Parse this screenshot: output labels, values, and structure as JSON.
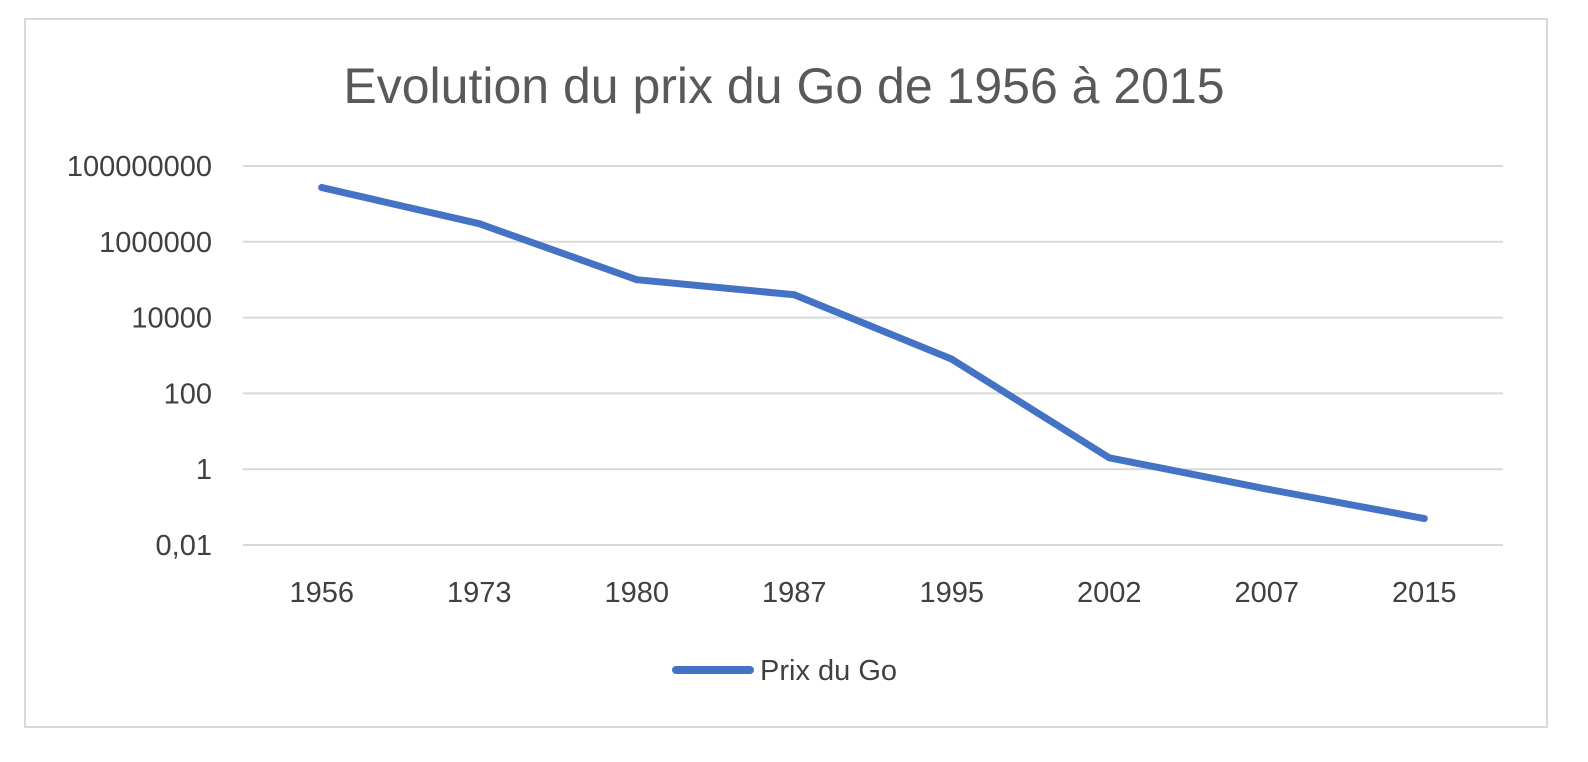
{
  "chart_data": {
    "type": "line",
    "title": "Evolution du prix du Go de 1956 à 2015",
    "xlabel": "",
    "ylabel": "",
    "y_scale": "log10",
    "ylim": [
      0.01,
      100000000
    ],
    "y_ticks": [
      {
        "value": 0.01,
        "label": "0,01"
      },
      {
        "value": 1,
        "label": "1"
      },
      {
        "value": 100,
        "label": "100"
      },
      {
        "value": 10000,
        "label": "10000"
      },
      {
        "value": 1000000,
        "label": "1000000"
      },
      {
        "value": 100000000,
        "label": "100000000"
      }
    ],
    "categories": [
      "1956",
      "1973",
      "1980",
      "1987",
      "1995",
      "2002",
      "2007",
      "2015"
    ],
    "series": [
      {
        "name": "Prix du Go",
        "color": "#4472c4",
        "values": [
          27000000,
          3000000,
          100000,
          40000,
          800,
          2,
          0.3,
          0.05
        ]
      }
    ],
    "grid": true,
    "legend_position": "bottom"
  }
}
